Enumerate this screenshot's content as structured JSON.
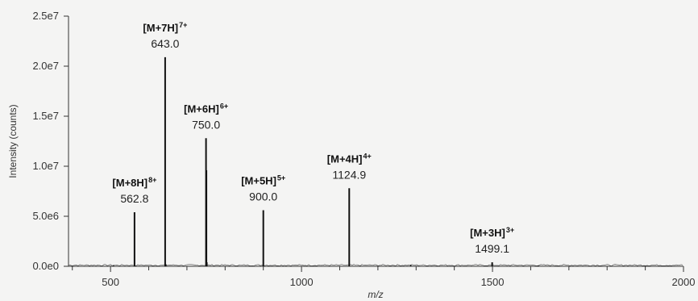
{
  "chart_data": {
    "type": "bar",
    "xlabel": "m/z",
    "ylabel": "Intensity (counts)",
    "xlim": [
      390,
      2000
    ],
    "ylim": [
      0,
      25000000
    ],
    "x_ticks": [
      500,
      1000,
      1500,
      2000
    ],
    "x_tick_labels": [
      "500",
      "1000",
      "1500",
      "2000"
    ],
    "y_ticks": [
      0,
      5000000,
      10000000,
      15000000,
      20000000,
      25000000
    ],
    "y_tick_labels": [
      "0.0e0",
      "5.0e6",
      "1.0e7",
      "1.5e7",
      "2.0e7",
      "2.5e7"
    ],
    "grid": false,
    "peaks": [
      {
        "ion": "[M+8H]",
        "charge": "8+",
        "mz": 562.8,
        "mz_label": "562.8",
        "intensity": 5400000
      },
      {
        "ion": "[M+7H]",
        "charge": "7+",
        "mz": 643.0,
        "mz_label": "643.0",
        "intensity": 20900000
      },
      {
        "ion": "[M+6H]",
        "charge": "6+",
        "mz": 750.0,
        "mz_label": "750.0",
        "intensity": 12800000
      },
      {
        "ion": "[M+5H]",
        "charge": "5+",
        "mz": 900.0,
        "mz_label": "900.0",
        "intensity": 5600000
      },
      {
        "ion": "[M+4H]",
        "charge": "4+",
        "mz": 1124.9,
        "mz_label": "1124.9",
        "intensity": 7800000
      },
      {
        "ion": "[M+3H]",
        "charge": "3+",
        "mz": 1499.1,
        "mz_label": "1499.1",
        "intensity": 400000
      }
    ],
    "minor_peaks": [
      {
        "mz": 751.5,
        "intensity": 9600000
      },
      {
        "mz": 752.5,
        "intensity": 400000
      },
      {
        "mz": 645.0,
        "intensity": 200000
      },
      {
        "mz": 508.0,
        "intensity": 100000
      },
      {
        "mz": 1286.0,
        "intensity": 150000
      },
      {
        "mz": 1620.0,
        "intensity": 80000
      }
    ]
  }
}
